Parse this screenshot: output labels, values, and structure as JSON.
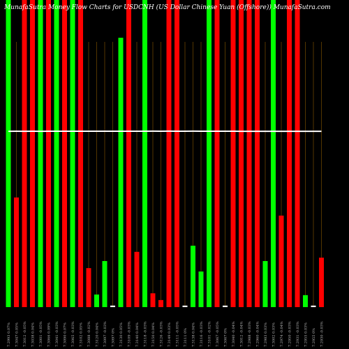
{
  "chart_data": {
    "type": "bar",
    "title": "MunafaSutra Money Flow Charts for USDCNH (US Dollar Chinese Yuan (Offshore)) MunafaSutra.com",
    "categories": [
      "7.2993 0.07%",
      "7.3047 0.05%",
      "7.3012 -0.05%",
      "7.3038 0.04%",
      "7.3001 -0.05%",
      "7.3066 0.09%",
      "7.3041 -0.03%",
      "7.3090 0.07%",
      "7.3065 -0.03%",
      "7.3102 0.05%",
      "7.3088 -0.02%",
      "7.3120 0.04%",
      "7.3097 -0.03%",
      "7.3097 0%",
      "7.3130 0.05%",
      "7.3109 -0.03%",
      "7.3140 0.04%",
      "7.3118 -0.03%",
      "7.3150 0.04%",
      "7.3126 -0.03%",
      "7.3149 0.03%",
      "7.3111 -0.05%",
      "7.3111 0%",
      "7.3138 0.04%",
      "7.3116 -0.03%",
      "7.3101 -0.02%",
      "7.3067 -0.05%",
      "7.3067 0%",
      "7.3040 -0.04%",
      "7.3012 -0.04%",
      "7.2988 -0.03%",
      "7.2960 -0.04%",
      "7.2983 0.03%",
      "7.3002 0.03%",
      "7.2974 -0.04%",
      "7.2950 -0.03%",
      "7.2931 -0.03%",
      "7.2955 0.03%",
      "7.2955 0%",
      "7.2930 -0.03%"
    ],
    "series": [
      {
        "name": "Volume",
        "values": [
          100,
          35.7,
          100,
          100,
          100,
          100,
          100,
          100,
          100,
          100,
          12.7,
          4.1,
          15,
          0.5,
          87.7,
          100,
          18,
          100,
          4.5,
          2.3,
          100,
          100,
          0.5,
          20,
          11.6,
          100,
          100,
          0.5,
          100,
          100,
          100,
          100,
          15,
          100,
          29.8,
          100,
          100,
          3.9,
          0.5,
          16.1
        ],
        "colors": [
          "#00ff00",
          "#ff0000",
          "#ff0000",
          "#ff0000",
          "#00ff00",
          "#ff0000",
          "#00ff00",
          "#ff0000",
          "#00ff00",
          "#ff0000",
          "#ff0000",
          "#00ff00",
          "#00ff00",
          "#ffffff",
          "#00ff00",
          "#ff0000",
          "#ff0000",
          "#00ff00",
          "#ff0000",
          "#ff0000",
          "#ff0000",
          "#ff0000",
          "#ffffff",
          "#00ff00",
          "#00ff00",
          "#00ff00",
          "#ff0000",
          "#ffffff",
          "#ff0000",
          "#ff0000",
          "#ff0000",
          "#ff0000",
          "#00ff00",
          "#00ff00",
          "#ff0000",
          "#ff0000",
          "#ff0000",
          "#00ff00",
          "#ffffff",
          "#ff0000"
        ]
      },
      {
        "name": "Price",
        "axis": "y2",
        "color": "#ffffff",
        "values": [
          7.3,
          7.301,
          7.3,
          7.301,
          7.3,
          7.302,
          7.301,
          7.303,
          7.302,
          7.303,
          7.303,
          7.304,
          7.303,
          7.303,
          7.304,
          7.303,
          7.304,
          7.304,
          7.305,
          7.304,
          7.305,
          7.304,
          7.304,
          7.305,
          7.304,
          7.303,
          7.302,
          7.302,
          7.301,
          7.3,
          7.299,
          7.298,
          7.299,
          7.3,
          7.299,
          7.298,
          7.297,
          7.298,
          7.298,
          7.297
        ]
      }
    ],
    "ylim": [
      0,
      100
    ],
    "y2lim": [
      0,
      12.75
    ]
  }
}
